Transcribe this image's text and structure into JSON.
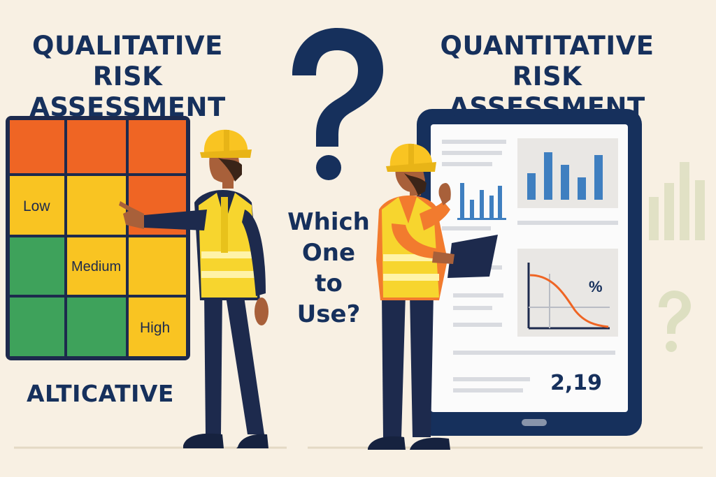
{
  "left_title": "QUALITATIVE\nRISK ASSESSMENT",
  "right_title": "QUANTITATIVE\nRISK ASSESSMENT",
  "question": "Which\nOne\nto\nUse?",
  "bottom_left_label": "ALTICATIVE",
  "matrix": {
    "low_label": "Low",
    "medium_label": "Medium",
    "high_label": "High",
    "colors": {
      "red": "#ef6524",
      "yellow": "#f9c422",
      "green": "#3ea25b",
      "frame": "#1d2a4d"
    }
  },
  "tablet": {
    "percent_label": "%",
    "metric_value": "2,19"
  },
  "colors": {
    "background": "#f8f0e3",
    "navy": "#16305c",
    "vest": "#f7d52e",
    "chart_blue": "#3f7fc0",
    "curve_orange": "#ef6524"
  }
}
